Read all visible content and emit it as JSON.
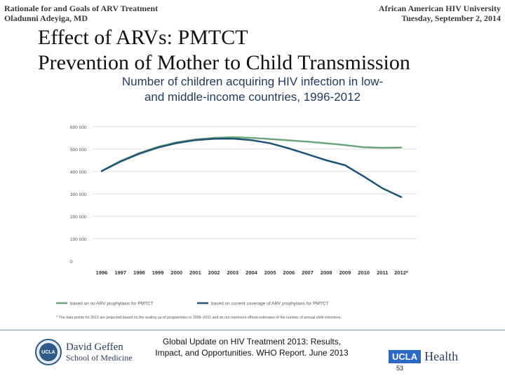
{
  "header": {
    "left_line1": "Rationale for and Goals of ARV Treatment",
    "left_line2": "Oladunni Adeyiga, MD",
    "right_line1": "African American HIV University",
    "right_line2": "Tuesday, September 2, 2014"
  },
  "slide": {
    "title_line1": "Effect of ARVs:  PMTCT",
    "title_line2": "Prevention of Mother to Child Transmission",
    "subtitle_line1": "Number of children acquiring HIV infection in low-",
    "subtitle_line2": "and middle-income countries, 1996-2012",
    "footnote": "* The data points for 2012 are projected based on the scaling up of programmes in 2009–2011 and do not represent official estimates of the number of annual child infections.",
    "source_line1": "Global Update on HIV Treatment  2013:  Results,",
    "source_line2": "Impact, and Opportunities.  WHO Report.  June 2013",
    "page_number": "53"
  },
  "logos": {
    "seal_text": "UCLA",
    "geffen_name": "David Geffen",
    "geffen_school": "School of Medicine",
    "ucla_box": "UCLA",
    "ucla_health": "Health"
  },
  "chart_data": {
    "type": "line",
    "categories": [
      "1996",
      "1997",
      "1998",
      "1999",
      "2000",
      "2001",
      "2002",
      "2003",
      "2004",
      "2005",
      "2006",
      "2007",
      "2008",
      "2009",
      "2010",
      "2011",
      "2012*"
    ],
    "y_ticks": [
      {
        "value": 0,
        "label": "0"
      },
      {
        "value": 100000,
        "label": "100 000"
      },
      {
        "value": 200000,
        "label": "200 000"
      },
      {
        "value": 300000,
        "label": "300 000"
      },
      {
        "value": 400000,
        "label": "400 000"
      },
      {
        "value": 500000,
        "label": "500 000"
      },
      {
        "value": 600000,
        "label": "600 000"
      }
    ],
    "ylim": [
      0,
      600000
    ],
    "grid": true,
    "legend_position": "bottom",
    "series": [
      {
        "name": "based on no ARV prophylaxis for PMTCT",
        "color": "#6fa47a",
        "values": [
          402000,
          447000,
          482000,
          510000,
          530000,
          543000,
          550000,
          553000,
          550000,
          545000,
          539000,
          533000,
          526000,
          518000,
          508000,
          506000,
          507000
        ]
      },
      {
        "name": "based on current coverage of ARV prophylaxis for PMTCT",
        "color": "#1f5476",
        "values": [
          402000,
          444000,
          479000,
          507000,
          527000,
          540000,
          546000,
          547000,
          540000,
          526000,
          503000,
          477000,
          450000,
          428000,
          378000,
          325000,
          286000
        ]
      }
    ]
  }
}
